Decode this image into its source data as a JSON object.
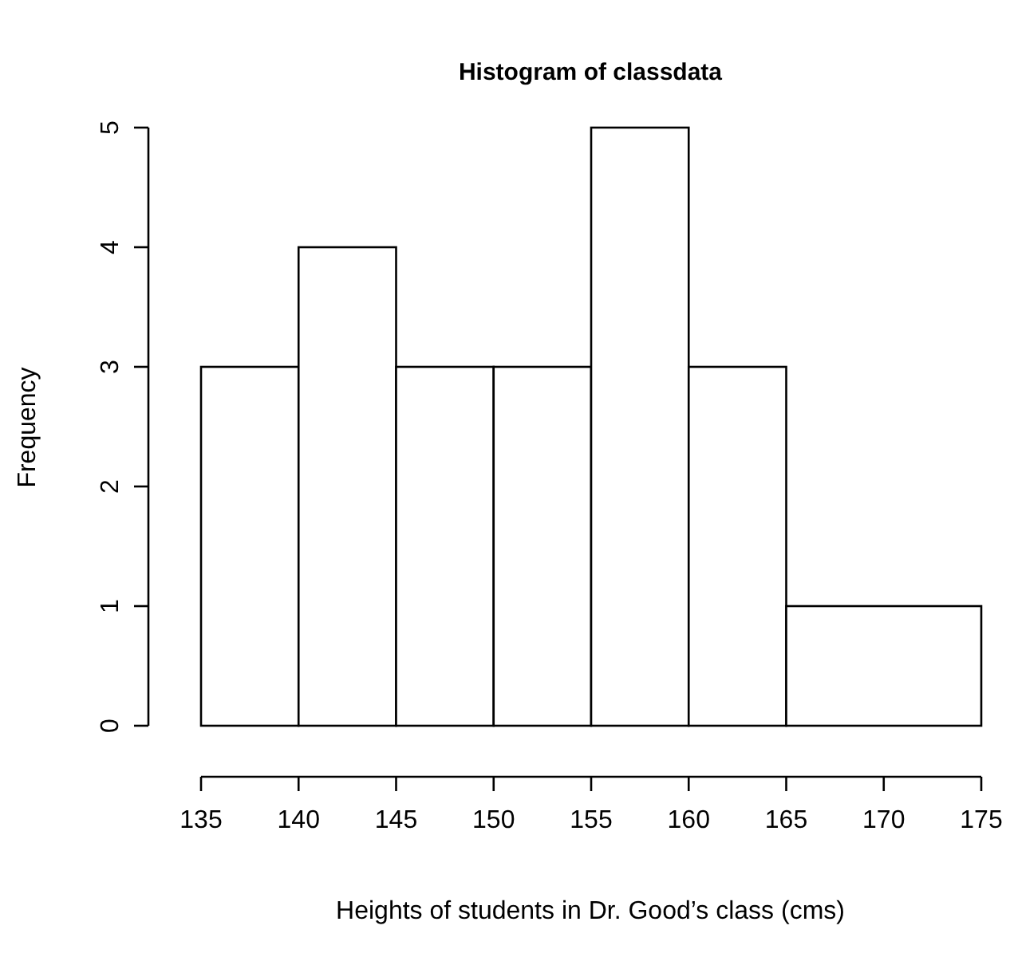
{
  "chart_data": {
    "type": "histogram",
    "title": "Histogram of classdata",
    "xlabel": "Heights of students in Dr. Good’s class (cms)",
    "ylabel": "Frequency",
    "bins": [
      135,
      140,
      145,
      150,
      155,
      160,
      165,
      175
    ],
    "values": [
      3,
      4,
      3,
      3,
      5,
      3,
      1
    ],
    "color": "#ffffff",
    "xlim": [
      135,
      175
    ],
    "xticks": [
      135,
      140,
      145,
      150,
      155,
      160,
      165,
      170,
      175
    ],
    "ylim": [
      0,
      5
    ],
    "yticks": [
      0,
      1,
      2,
      3,
      4,
      5
    ],
    "grid": false
  }
}
